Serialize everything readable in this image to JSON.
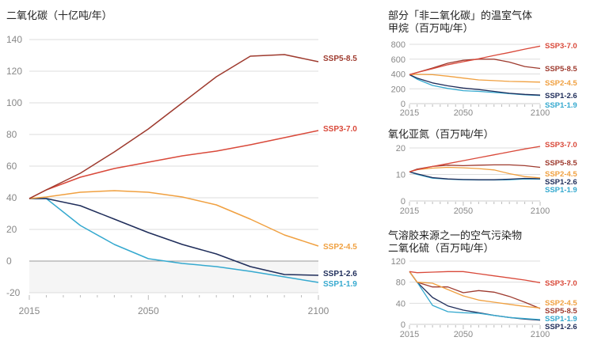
{
  "colors": {
    "SSP5-8.5": "#9e3a2e",
    "SSP3-7.0": "#d9493a",
    "SSP2-4.5": "#f0a040",
    "SSP1-2.6": "#1f2d5a",
    "SSP1-1.9": "#35a9cf",
    "grid": "#dddddd",
    "axis": "#aaaaaa",
    "negative_fill": "#f5f5f5"
  },
  "chart_data": [
    {
      "type": "line",
      "title": "二氧化碳（十亿吨/年）",
      "xlabel": "",
      "ylabel": "",
      "x_ticks": [
        "2015",
        "2050",
        "2100"
      ],
      "y_ticks": [
        "140",
        "120",
        "100",
        "80",
        "60",
        "40",
        "20",
        "0",
        "-20"
      ],
      "xlim": [
        2015,
        2100
      ],
      "ylim": [
        -20,
        140
      ],
      "grid": true,
      "legend": "right-end labels",
      "x": [
        2015,
        2020,
        2030,
        2040,
        2050,
        2060,
        2070,
        2080,
        2090,
        2100
      ],
      "series": [
        {
          "name": "SSP5-8.5",
          "values": [
            39.5,
            45,
            55.5,
            69,
            83.5,
            100,
            116.5,
            129.5,
            130.5,
            126
          ]
        },
        {
          "name": "SSP3-7.0",
          "values": [
            39.5,
            45,
            53,
            58.5,
            62.5,
            66.5,
            69.5,
            73.5,
            78,
            82.5
          ]
        },
        {
          "name": "SSP2-4.5",
          "values": [
            39.5,
            40.5,
            43.5,
            44.5,
            43.5,
            40.5,
            35.5,
            26.5,
            16.5,
            9.5
          ]
        },
        {
          "name": "SSP1-2.6",
          "values": [
            39.5,
            39.5,
            35,
            26.5,
            18,
            10.5,
            4.5,
            -3.5,
            -8.5,
            -9
          ]
        },
        {
          "name": "SSP1-1.9",
          "values": [
            39.5,
            39.5,
            22.5,
            10.5,
            1.5,
            -1.5,
            -3.5,
            -6.5,
            -10,
            -13.5
          ]
        }
      ]
    },
    {
      "type": "line",
      "title": "部分「非二氧化碳」的温室气体\n甲烷（百万吨/年）",
      "x_ticks": [
        "2015",
        "2050",
        "2100"
      ],
      "y_ticks": [
        "800",
        "600",
        "400",
        "200",
        "0"
      ],
      "xlim": [
        2015,
        2100
      ],
      "ylim": [
        0,
        800
      ],
      "grid": true,
      "legend": "right-end labels",
      "x": [
        2015,
        2020,
        2030,
        2040,
        2050,
        2060,
        2070,
        2080,
        2090,
        2100
      ],
      "series": [
        {
          "name": "SSP3-7.0",
          "values": [
            390,
            420,
            470,
            525,
            565,
            605,
            650,
            690,
            735,
            775
          ]
        },
        {
          "name": "SSP5-8.5",
          "values": [
            390,
            420,
            480,
            545,
            585,
            600,
            600,
            560,
            500,
            475
          ]
        },
        {
          "name": "SSP2-4.5",
          "values": [
            390,
            395,
            390,
            370,
            345,
            320,
            310,
            300,
            295,
            290
          ]
        },
        {
          "name": "SSP1-2.6",
          "values": [
            390,
            345,
            280,
            240,
            210,
            190,
            165,
            140,
            125,
            115
          ]
        },
        {
          "name": "SSP1-1.9",
          "values": [
            390,
            330,
            245,
            205,
            175,
            165,
            150,
            135,
            120,
            110
          ]
        }
      ]
    },
    {
      "type": "line",
      "title": "氧化亚氮（百万吨/年）",
      "x_ticks": [
        "2015",
        "2050",
        "2100"
      ],
      "y_ticks": [
        "20",
        "10",
        "0"
      ],
      "xlim": [
        2015,
        2100
      ],
      "ylim": [
        0,
        20
      ],
      "grid": true,
      "legend": "right-end labels",
      "x": [
        2015,
        2020,
        2030,
        2040,
        2050,
        2060,
        2070,
        2080,
        2090,
        2100
      ],
      "series": [
        {
          "name": "SSP3-7.0",
          "values": [
            11,
            11.8,
            13,
            14.1,
            15.2,
            16.3,
            17.4,
            18.5,
            19.6,
            20.6
          ]
        },
        {
          "name": "SSP5-8.5",
          "values": [
            11,
            12,
            13,
            13.5,
            13.3,
            13.5,
            13.6,
            13.6,
            13.3,
            12.7
          ]
        },
        {
          "name": "SSP2-4.5",
          "values": [
            11,
            11.8,
            12.4,
            12.7,
            12.5,
            12.2,
            11.7,
            10.3,
            9.2,
            8.7
          ]
        },
        {
          "name": "SSP1-2.6",
          "values": [
            11,
            10.2,
            8.8,
            8.3,
            8.1,
            8.0,
            8.0,
            8.2,
            8.5,
            8.4
          ]
        },
        {
          "name": "SSP1-1.9",
          "values": [
            11,
            10.0,
            8.6,
            8.2,
            8.0,
            7.9,
            7.9,
            8.0,
            8.3,
            8.2
          ]
        }
      ]
    },
    {
      "type": "line",
      "title": "气溶胶来源之一的空气污染物\n二氧化硫（百万吨/年）",
      "x_ticks": [
        "2015",
        "2050",
        "2100"
      ],
      "y_ticks": [
        "120",
        "80",
        "40",
        "0"
      ],
      "xlim": [
        2015,
        2100
      ],
      "ylim": [
        0,
        120
      ],
      "grid": true,
      "legend": "right-end labels",
      "x": [
        2015,
        2020,
        2030,
        2040,
        2050,
        2060,
        2070,
        2080,
        2090,
        2100
      ],
      "series": [
        {
          "name": "SSP3-7.0",
          "values": [
            100,
            98,
            99,
            100,
            100,
            96,
            92,
            88,
            84,
            79
          ]
        },
        {
          "name": "SSP2-4.5",
          "values": [
            100,
            80,
            78,
            66,
            54,
            46,
            42,
            38,
            34,
            31
          ]
        },
        {
          "name": "SSP5-8.5",
          "values": [
            100,
            80,
            71,
            71,
            60,
            64,
            61,
            53,
            42,
            30
          ]
        },
        {
          "name": "SSP1-1.9",
          "values": [
            100,
            80,
            36,
            24,
            22,
            21,
            17,
            13,
            11,
            9
          ]
        },
        {
          "name": "SSP1-2.6",
          "values": [
            100,
            80,
            51,
            35,
            27,
            22,
            17,
            13,
            10,
            8
          ]
        }
      ]
    }
  ]
}
